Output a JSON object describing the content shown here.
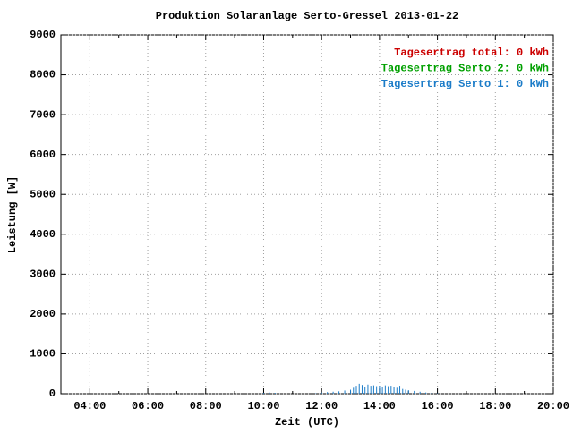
{
  "chart_data": {
    "type": "impulse",
    "title": "Produktion Solaranlage Serto-Gressel 2013-01-22",
    "xlabel": "Zeit (UTC)",
    "ylabel": "Leistung [W]",
    "xlim": [
      3,
      20
    ],
    "ylim": [
      0,
      9000
    ],
    "xticks": [
      {
        "value": 4,
        "label": "04:00"
      },
      {
        "value": 6,
        "label": "06:00"
      },
      {
        "value": 8,
        "label": "08:00"
      },
      {
        "value": 10,
        "label": "10:00"
      },
      {
        "value": 12,
        "label": "12:00"
      },
      {
        "value": 14,
        "label": "14:00"
      },
      {
        "value": 16,
        "label": "16:00"
      },
      {
        "value": 18,
        "label": "18:00"
      },
      {
        "value": 20,
        "label": "20:00"
      }
    ],
    "xminorticks": [
      5,
      7,
      9,
      11,
      13,
      15,
      17,
      19
    ],
    "yticks": [
      0,
      1000,
      2000,
      3000,
      4000,
      5000,
      6000,
      7000,
      8000,
      9000
    ],
    "grid": true,
    "legend": "upper right",
    "x": [
      10.0,
      10.2,
      10.4,
      11.8,
      12.0,
      12.2,
      12.4,
      12.6,
      12.8,
      13.0,
      13.1,
      13.2,
      13.3,
      13.4,
      13.5,
      13.6,
      13.7,
      13.8,
      13.9,
      14.0,
      14.1,
      14.2,
      14.3,
      14.4,
      14.5,
      14.6,
      14.7,
      14.8,
      14.9,
      15.0,
      15.2,
      15.4,
      15.6,
      15.8,
      16.0
    ],
    "series": [
      {
        "name": "Tagesertrag total: 0 kWh",
        "color": "#cc0000",
        "values": [
          null,
          null,
          null,
          null,
          null,
          null,
          null,
          null,
          null,
          null,
          null,
          null,
          null,
          null,
          null,
          null,
          null,
          null,
          null,
          null,
          null,
          null,
          null,
          null,
          null,
          null,
          null,
          null,
          null,
          null,
          null,
          null,
          null,
          null,
          null
        ]
      },
      {
        "name": "Tagesertrag Serto 2: 0 kWh",
        "color": "#00a000",
        "values": [
          null,
          null,
          null,
          null,
          null,
          null,
          null,
          null,
          null,
          null,
          null,
          null,
          null,
          null,
          null,
          null,
          null,
          null,
          null,
          null,
          null,
          null,
          null,
          null,
          null,
          null,
          null,
          null,
          null,
          null,
          null,
          null,
          null,
          null,
          null
        ]
      },
      {
        "name": "Tagesertrag Serto 1: 0 kWh",
        "color": "#1c7cc8",
        "values": [
          20,
          30,
          20,
          10,
          30,
          40,
          50,
          60,
          80,
          100,
          150,
          200,
          250,
          220,
          180,
          230,
          200,
          210,
          190,
          200,
          180,
          210,
          190,
          200,
          170,
          150,
          200,
          120,
          100,
          90,
          70,
          50,
          30,
          20,
          10
        ]
      }
    ]
  }
}
